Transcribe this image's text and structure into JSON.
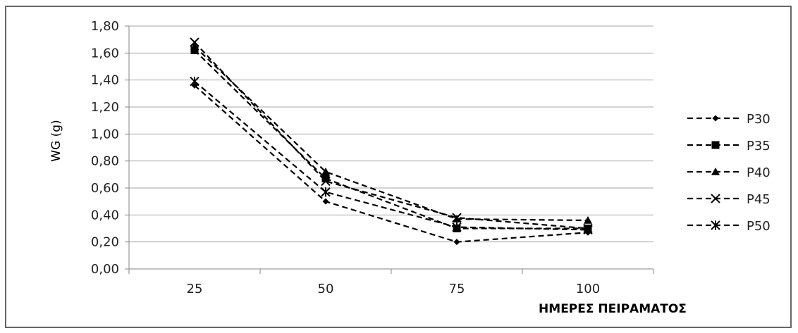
{
  "chart_data": {
    "type": "line",
    "title": "",
    "xlabel": "ΗΜΕΡΕΣ ΠΕΙΡΑΜΑΤΟΣ",
    "ylabel": "WG (g)",
    "categories": [
      "25",
      "50",
      "75",
      "100"
    ],
    "ylim": [
      0,
      1.8
    ],
    "ytick_step": 0.2,
    "ytick_labels": [
      "0,00",
      "0,20",
      "0,40",
      "0,60",
      "0,80",
      "1,00",
      "1,20",
      "1,40",
      "1,60",
      "1,80"
    ],
    "grid": "horizontal",
    "legend_position": "right",
    "series": [
      {
        "name": "P30",
        "marker": "diamond",
        "values": [
          1.36,
          0.5,
          0.2,
          0.27
        ]
      },
      {
        "name": "P35",
        "marker": "square",
        "values": [
          1.62,
          0.67,
          0.3,
          0.3
        ]
      },
      {
        "name": "P40",
        "marker": "triangle",
        "values": [
          1.65,
          0.72,
          0.37,
          0.36
        ]
      },
      {
        "name": "P45",
        "marker": "x",
        "values": [
          1.68,
          0.65,
          0.38,
          0.3
        ]
      },
      {
        "name": "P50",
        "marker": "asterisk",
        "values": [
          1.39,
          0.57,
          0.31,
          0.29
        ]
      }
    ],
    "line_color": "#000000",
    "line_style": "dashed"
  }
}
